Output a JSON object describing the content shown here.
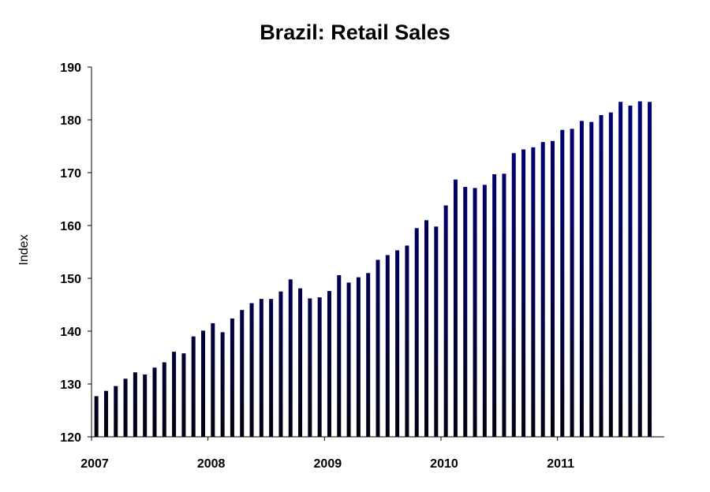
{
  "chart_data": {
    "type": "bar",
    "title": "Brazil: Retail Sales",
    "xlabel": "",
    "ylabel": "Index",
    "ylim": [
      120,
      190
    ],
    "yticks": [
      "120",
      "130",
      "140",
      "150",
      "160",
      "170",
      "180",
      "190"
    ],
    "xticks": [
      "2007",
      "2008",
      "2009",
      "2010",
      "2011"
    ],
    "x_start": "2007-01",
    "bar_color": "#000080",
    "grid": false,
    "legend": "none",
    "series": [
      {
        "values": [
          127.7,
          128.7,
          129.6,
          131.0,
          132.2,
          131.8,
          133.1,
          134.1,
          136.1,
          135.8,
          139.0,
          140.1,
          141.5,
          139.8,
          142.4,
          144.0,
          145.3,
          146.1,
          146.1,
          147.5,
          149.8,
          148.1,
          146.2,
          146.4,
          147.6,
          150.6,
          149.2,
          150.2,
          151.0,
          153.5,
          154.4,
          155.3,
          156.2,
          159.5,
          161.0,
          159.8,
          163.8,
          168.7,
          167.3,
          167.1,
          167.7,
          169.7,
          169.8,
          173.7,
          174.4,
          174.8,
          175.8,
          176.0,
          178.1,
          178.3,
          179.8,
          179.6,
          180.9,
          181.4,
          183.4,
          182.7,
          183.5,
          183.4
        ]
      }
    ]
  }
}
